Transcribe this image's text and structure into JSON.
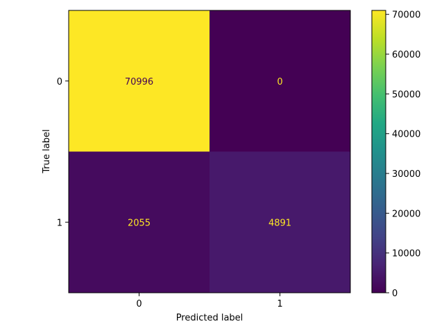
{
  "chart_data": {
    "type": "heatmap",
    "title": "",
    "xlabel": "Predicted label",
    "ylabel": "True label",
    "x_categories": [
      "0",
      "1"
    ],
    "y_categories": [
      "0",
      "1"
    ],
    "values": [
      [
        70996,
        0
      ],
      [
        2055,
        4891
      ]
    ],
    "colormap": "viridis",
    "colorbar": {
      "range": [
        0,
        70996
      ],
      "ticks": [
        0,
        10000,
        20000,
        30000,
        40000,
        50000,
        60000,
        70000
      ]
    },
    "grid": false,
    "colors": {
      "low": "#440154",
      "high": "#fde725",
      "text_on_dark": "#fde725",
      "text_on_light": "#440154"
    }
  }
}
